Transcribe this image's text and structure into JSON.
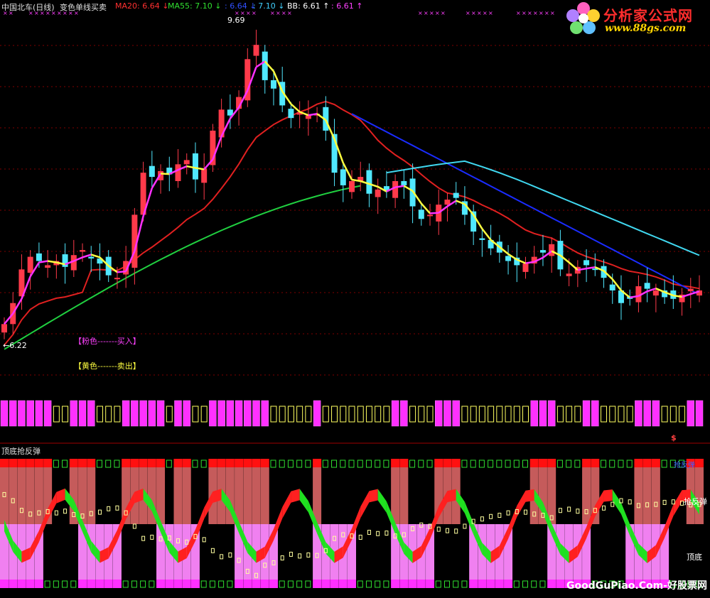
{
  "header": {
    "title": "中国北车(日线)",
    "indicator_name": "变色单线买卖",
    "items": [
      {
        "label": "MA20:",
        "value": "6.64",
        "arrow": "↓",
        "color": "#ff3030"
      },
      {
        "label": "MA55:",
        "value": "7.10",
        "arrow": "↓",
        "color": "#30e030"
      },
      {
        "label": ":",
        "value": "6.64",
        "arrow": "↓",
        "color": "#3050ff"
      },
      {
        "label": ":",
        "value": "7.10",
        "arrow": "↓",
        "color": "#40d0ff"
      },
      {
        "label": "BB:",
        "value": "6.61",
        "arrow": "↑",
        "color": "#ffffff"
      },
      {
        "label": ":",
        "value": "6.61",
        "arrow": "↑",
        "color": "#ff40ff"
      }
    ]
  },
  "annotations": {
    "high_label": "9.69",
    "low_label": "←6.22",
    "pink_legend": "【粉色-------买入】",
    "yellow_legend": "【黄色-------卖出】"
  },
  "lower_panel": {
    "title": "顶底抢反弹",
    "right_top": "抢反弹",
    "right_mid": "抢反弹",
    "right_bottom": "顶底",
    "marker": "$"
  },
  "logo": {
    "title": "分析家公式网",
    "url": "www.88gs.com"
  },
  "watermark": "GoodGuPiao.Com-好股票网",
  "colors": {
    "background": "#000000",
    "up": "#ff3a4a",
    "down": "#50e8ff",
    "ma20": "#e02020",
    "ma55": "#20d040",
    "blue_line": "#1a2cff",
    "cyan_line": "#40d8f0",
    "signal_buy": "#ff30ff",
    "signal_sell": "#ffff40",
    "top_zone": "#d06060",
    "bottom_zone": "#f080f0",
    "ribbon_up": "#ff2020",
    "ribbon_down": "#20e020"
  },
  "chart_data": {
    "type": "candlestick",
    "title": "中国北车(日线)",
    "price_high": 9.69,
    "price_low": 6.22,
    "ma20_last": 6.64,
    "ma55_last": 7.1,
    "bb_last": 6.61,
    "close_series": [
      6.3,
      6.55,
      6.95,
      7.1,
      7.05,
      7.0,
      7.05,
      6.98,
      7.12,
      7.18,
      7.08,
      7.02,
      6.88,
      6.85,
      7.05,
      7.6,
      8.1,
      8.05,
      8.12,
      8.08,
      8.2,
      8.25,
      8.02,
      8.15,
      8.6,
      8.85,
      8.78,
      9.0,
      9.45,
      9.62,
      9.2,
      9.1,
      8.9,
      8.75,
      8.82,
      8.78,
      8.8,
      8.6,
      8.1,
      7.95,
      8.0,
      8.05,
      7.85,
      7.9,
      7.88,
      8.0,
      7.95,
      7.7,
      7.55,
      7.6,
      7.72,
      7.78,
      7.8,
      7.6,
      7.4,
      7.3,
      7.2,
      7.15,
      7.05,
      7.0,
      7.02,
      7.1,
      7.15,
      7.25,
      6.95,
      6.9,
      6.98,
      7.0,
      6.95,
      6.85,
      6.7,
      6.55,
      6.6,
      6.75,
      6.72,
      6.7,
      6.62,
      6.6,
      6.65,
      6.72,
      6.7
    ]
  }
}
